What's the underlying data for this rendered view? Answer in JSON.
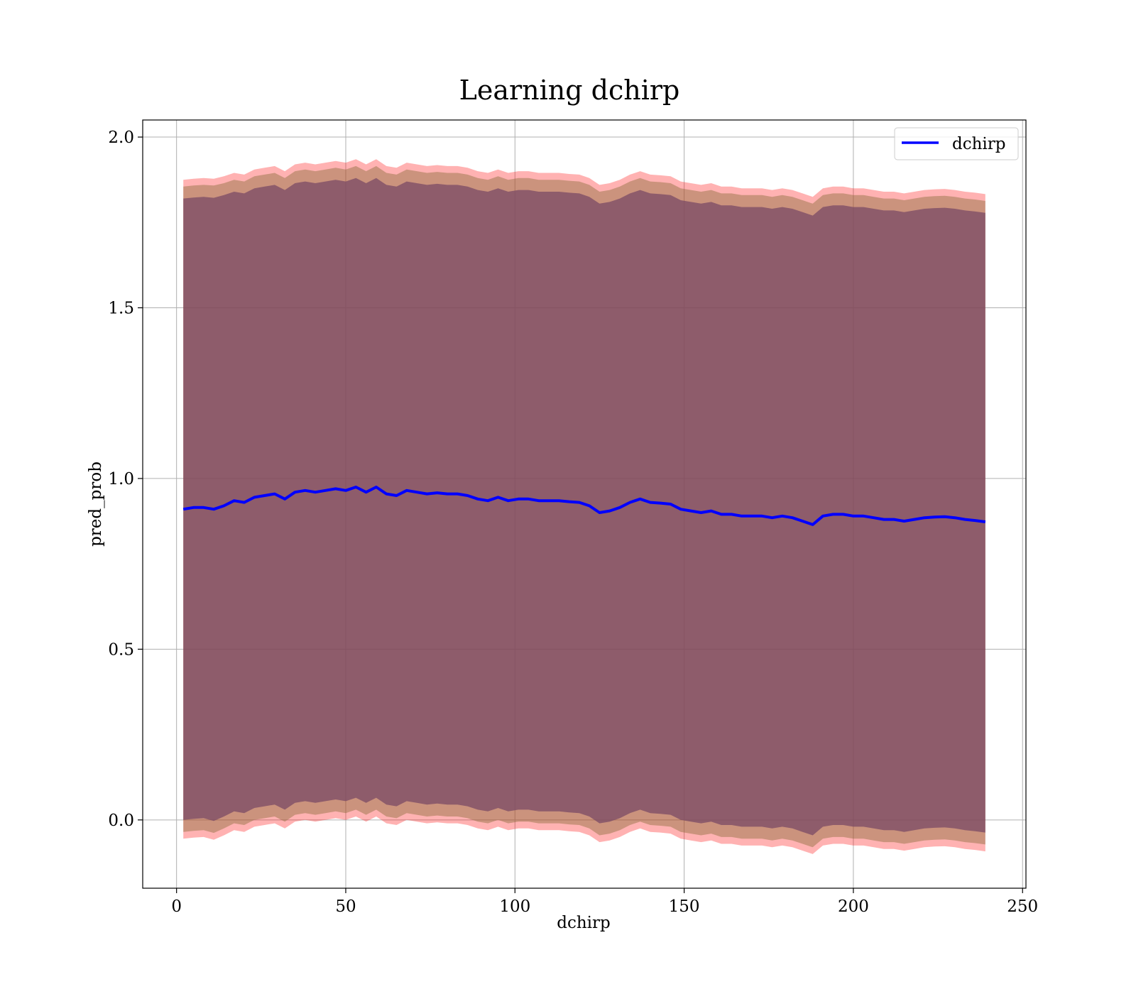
{
  "chart_data": {
    "type": "line",
    "title": "Learning dchirp",
    "xlabel": "dchirp",
    "ylabel": "pred_prob",
    "xlim": [
      -10,
      251
    ],
    "ylim": [
      -0.2,
      2.05
    ],
    "xticks": [
      0,
      50,
      100,
      150,
      200,
      250
    ],
    "xtick_labels": [
      "0",
      "50",
      "100",
      "150",
      "200",
      "250"
    ],
    "yticks": [
      0.0,
      0.5,
      1.0,
      1.5,
      2.0
    ],
    "ytick_labels": [
      "0.0",
      "0.5",
      "1.0",
      "1.5",
      "2.0"
    ],
    "grid": true,
    "legend": {
      "position": "top-right",
      "entries": [
        "dchirp"
      ]
    },
    "x": [
      2,
      5,
      8,
      11,
      14,
      17,
      20,
      23,
      26,
      29,
      32,
      35,
      38,
      41,
      44,
      47,
      50,
      53,
      56,
      59,
      62,
      65,
      68,
      71,
      74,
      77,
      80,
      83,
      86,
      89,
      92,
      95,
      98,
      101,
      104,
      107,
      110,
      113,
      116,
      119,
      122,
      125,
      128,
      131,
      134,
      137,
      140,
      143,
      146,
      149,
      152,
      155,
      158,
      161,
      164,
      167,
      170,
      173,
      176,
      179,
      182,
      185,
      188,
      191,
      194,
      197,
      200,
      203,
      206,
      209,
      212,
      215,
      218,
      221,
      224,
      227,
      230,
      233,
      236,
      239
    ],
    "series": [
      {
        "name": "dchirp",
        "color": "#0000ff",
        "values": [
          0.91,
          0.915,
          0.915,
          0.91,
          0.92,
          0.935,
          0.93,
          0.945,
          0.95,
          0.955,
          0.94,
          0.96,
          0.965,
          0.96,
          0.965,
          0.97,
          0.965,
          0.975,
          0.96,
          0.975,
          0.955,
          0.95,
          0.965,
          0.96,
          0.955,
          0.958,
          0.955,
          0.955,
          0.95,
          0.94,
          0.935,
          0.945,
          0.935,
          0.94,
          0.94,
          0.935,
          0.935,
          0.935,
          0.932,
          0.93,
          0.92,
          0.9,
          0.905,
          0.915,
          0.93,
          0.94,
          0.93,
          0.928,
          0.925,
          0.91,
          0.905,
          0.9,
          0.905,
          0.895,
          0.895,
          0.89,
          0.89,
          0.89,
          0.885,
          0.89,
          0.885,
          0.875,
          0.865,
          0.89,
          0.895,
          0.895,
          0.89,
          0.89,
          0.885,
          0.88,
          0.88,
          0.875,
          0.88,
          0.885,
          0.887,
          0.888,
          0.885,
          0.88,
          0.877,
          0.873
        ]
      }
    ],
    "bands": [
      {
        "color": "#ff0000",
        "opacity": 0.3,
        "upper": [
          1.875,
          1.878,
          1.88,
          1.878,
          1.885,
          1.895,
          1.89,
          1.905,
          1.91,
          1.915,
          1.9,
          1.92,
          1.925,
          1.92,
          1.925,
          1.93,
          1.925,
          1.935,
          1.92,
          1.935,
          1.915,
          1.91,
          1.925,
          1.92,
          1.915,
          1.918,
          1.915,
          1.915,
          1.91,
          1.9,
          1.895,
          1.905,
          1.895,
          1.9,
          1.9,
          1.895,
          1.895,
          1.895,
          1.892,
          1.89,
          1.88,
          1.86,
          1.865,
          1.875,
          1.89,
          1.9,
          1.89,
          1.888,
          1.885,
          1.87,
          1.865,
          1.86,
          1.865,
          1.855,
          1.855,
          1.85,
          1.85,
          1.85,
          1.845,
          1.85,
          1.845,
          1.835,
          1.825,
          1.85,
          1.855,
          1.855,
          1.85,
          1.85,
          1.845,
          1.84,
          1.84,
          1.835,
          1.84,
          1.845,
          1.847,
          1.848,
          1.845,
          1.84,
          1.837,
          1.833
        ],
        "lower": [
          -0.055,
          -0.052,
          -0.05,
          -0.058,
          -0.045,
          -0.03,
          -0.035,
          -0.02,
          -0.015,
          -0.01,
          -0.025,
          -0.005,
          0.0,
          -0.005,
          0.0,
          0.005,
          0.0,
          0.01,
          -0.005,
          0.01,
          -0.01,
          -0.015,
          0.0,
          -0.005,
          -0.01,
          -0.007,
          -0.01,
          -0.01,
          -0.015,
          -0.025,
          -0.03,
          -0.02,
          -0.03,
          -0.025,
          -0.025,
          -0.03,
          -0.03,
          -0.03,
          -0.033,
          -0.035,
          -0.045,
          -0.065,
          -0.06,
          -0.05,
          -0.035,
          -0.025,
          -0.035,
          -0.037,
          -0.04,
          -0.055,
          -0.06,
          -0.065,
          -0.06,
          -0.07,
          -0.07,
          -0.075,
          -0.075,
          -0.075,
          -0.08,
          -0.075,
          -0.08,
          -0.09,
          -0.1,
          -0.075,
          -0.07,
          -0.07,
          -0.075,
          -0.075,
          -0.08,
          -0.085,
          -0.085,
          -0.09,
          -0.085,
          -0.08,
          -0.078,
          -0.077,
          -0.08,
          -0.085,
          -0.088,
          -0.092
        ]
      },
      {
        "color": "#8c6d3c",
        "opacity": 0.45,
        "upper": [
          1.855,
          1.858,
          1.86,
          1.858,
          1.865,
          1.875,
          1.87,
          1.885,
          1.89,
          1.895,
          1.88,
          1.9,
          1.905,
          1.9,
          1.905,
          1.91,
          1.905,
          1.915,
          1.9,
          1.915,
          1.895,
          1.89,
          1.905,
          1.9,
          1.895,
          1.898,
          1.895,
          1.895,
          1.89,
          1.88,
          1.875,
          1.885,
          1.875,
          1.88,
          1.88,
          1.875,
          1.875,
          1.875,
          1.872,
          1.87,
          1.86,
          1.84,
          1.845,
          1.855,
          1.87,
          1.88,
          1.87,
          1.868,
          1.865,
          1.85,
          1.845,
          1.84,
          1.845,
          1.835,
          1.835,
          1.83,
          1.83,
          1.83,
          1.825,
          1.83,
          1.825,
          1.815,
          1.805,
          1.83,
          1.835,
          1.835,
          1.83,
          1.83,
          1.825,
          1.82,
          1.82,
          1.815,
          1.82,
          1.825,
          1.827,
          1.828,
          1.825,
          1.82,
          1.817,
          1.813
        ],
        "lower": [
          -0.035,
          -0.032,
          -0.03,
          -0.038,
          -0.025,
          -0.01,
          -0.015,
          0.0,
          0.005,
          0.01,
          -0.005,
          0.015,
          0.02,
          0.015,
          0.02,
          0.025,
          0.02,
          0.03,
          0.015,
          0.03,
          0.01,
          0.005,
          0.02,
          0.015,
          0.01,
          0.013,
          0.01,
          0.01,
          0.005,
          -0.005,
          -0.01,
          0.0,
          -0.01,
          -0.005,
          -0.005,
          -0.01,
          -0.01,
          -0.01,
          -0.013,
          -0.015,
          -0.025,
          -0.045,
          -0.04,
          -0.03,
          -0.015,
          -0.005,
          -0.015,
          -0.017,
          -0.02,
          -0.035,
          -0.04,
          -0.045,
          -0.04,
          -0.05,
          -0.05,
          -0.055,
          -0.055,
          -0.055,
          -0.06,
          -0.055,
          -0.06,
          -0.07,
          -0.08,
          -0.055,
          -0.05,
          -0.05,
          -0.055,
          -0.055,
          -0.06,
          -0.065,
          -0.065,
          -0.07,
          -0.065,
          -0.06,
          -0.058,
          -0.057,
          -0.06,
          -0.065,
          -0.068,
          -0.072
        ]
      },
      {
        "color": "#7a4a66",
        "opacity": 0.75,
        "upper": [
          1.82,
          1.823,
          1.825,
          1.822,
          1.83,
          1.84,
          1.835,
          1.85,
          1.855,
          1.86,
          1.845,
          1.865,
          1.87,
          1.865,
          1.87,
          1.875,
          1.87,
          1.88,
          1.865,
          1.88,
          1.86,
          1.855,
          1.87,
          1.865,
          1.86,
          1.863,
          1.86,
          1.86,
          1.855,
          1.845,
          1.84,
          1.85,
          1.84,
          1.845,
          1.845,
          1.84,
          1.84,
          1.84,
          1.837,
          1.835,
          1.825,
          1.805,
          1.81,
          1.82,
          1.835,
          1.845,
          1.835,
          1.833,
          1.83,
          1.815,
          1.81,
          1.805,
          1.81,
          1.8,
          1.8,
          1.795,
          1.795,
          1.795,
          1.79,
          1.795,
          1.79,
          1.78,
          1.77,
          1.795,
          1.8,
          1.8,
          1.795,
          1.795,
          1.79,
          1.785,
          1.785,
          1.78,
          1.785,
          1.79,
          1.792,
          1.793,
          1.79,
          1.785,
          1.782,
          1.778
        ],
        "lower": [
          0.0,
          0.003,
          0.005,
          -0.003,
          0.01,
          0.025,
          0.02,
          0.035,
          0.04,
          0.045,
          0.03,
          0.05,
          0.055,
          0.05,
          0.055,
          0.06,
          0.055,
          0.065,
          0.05,
          0.065,
          0.045,
          0.04,
          0.055,
          0.05,
          0.045,
          0.048,
          0.045,
          0.045,
          0.04,
          0.03,
          0.025,
          0.035,
          0.025,
          0.03,
          0.03,
          0.025,
          0.025,
          0.025,
          0.022,
          0.02,
          0.01,
          -0.01,
          -0.005,
          0.005,
          0.02,
          0.03,
          0.02,
          0.018,
          0.015,
          0.0,
          -0.005,
          -0.01,
          -0.005,
          -0.015,
          -0.015,
          -0.02,
          -0.02,
          -0.02,
          -0.025,
          -0.02,
          -0.025,
          -0.035,
          -0.045,
          -0.02,
          -0.015,
          -0.015,
          -0.02,
          -0.02,
          -0.025,
          -0.03,
          -0.03,
          -0.035,
          -0.03,
          -0.025,
          -0.023,
          -0.022,
          -0.025,
          -0.03,
          -0.033,
          -0.037
        ]
      }
    ]
  }
}
